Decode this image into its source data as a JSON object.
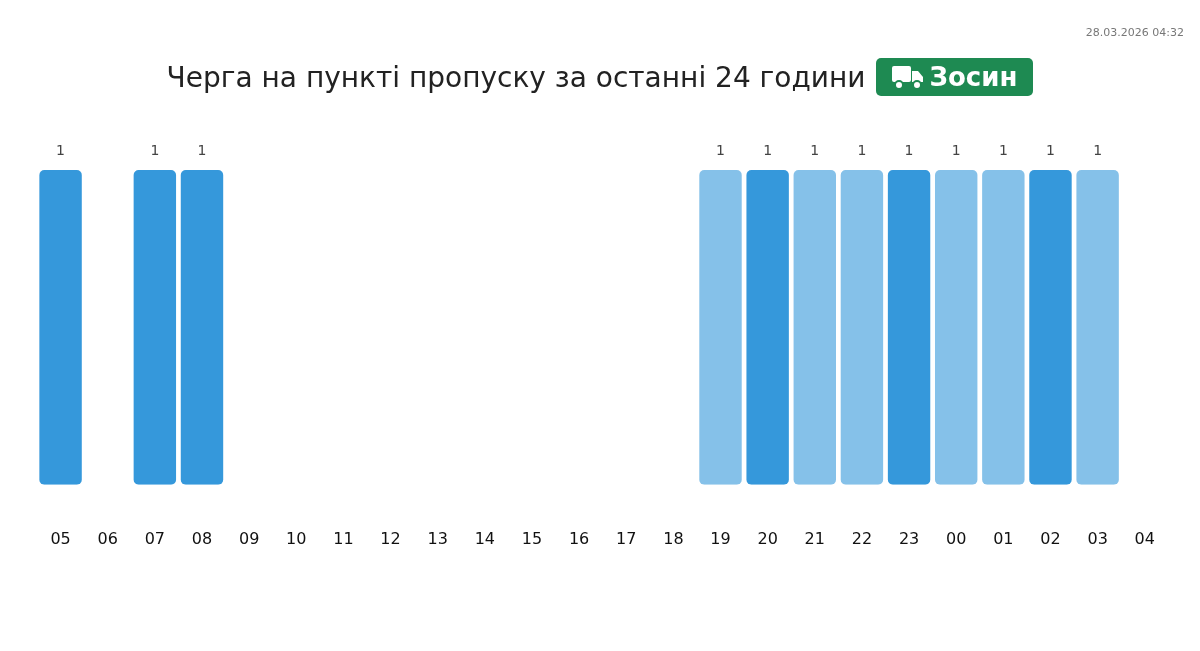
{
  "chart_data": {
    "type": "bar",
    "title": "Черга на пункті пропуску за останні 24 години",
    "subtitle": "Зосин",
    "categories": [
      "05",
      "06",
      "07",
      "08",
      "09",
      "10",
      "11",
      "12",
      "13",
      "14",
      "15",
      "16",
      "17",
      "18",
      "19",
      "20",
      "21",
      "22",
      "23",
      "00",
      "01",
      "02",
      "03",
      "04"
    ],
    "values": [
      1,
      null,
      1,
      1,
      null,
      null,
      null,
      null,
      null,
      null,
      null,
      null,
      null,
      null,
      1,
      1,
      1,
      1,
      1,
      1,
      1,
      1,
      1,
      null
    ],
    "colors": [
      "#3598db",
      "#3598db",
      "#3598db",
      "#3598db",
      "#3598db",
      "#3598db",
      "#3598db",
      "#3598db",
      "#3598db",
      "#3598db",
      "#3598db",
      "#3598db",
      "#3598db",
      "#3598db",
      "#85c1e9",
      "#3598db",
      "#85c1e9",
      "#85c1e9",
      "#3598db",
      "#85c1e9",
      "#85c1e9",
      "#3598db",
      "#85c1e9",
      "#3598db"
    ],
    "data_labels": true,
    "grid": false,
    "legend": false,
    "annotations": [
      "28.03.2026 04:32"
    ]
  }
}
